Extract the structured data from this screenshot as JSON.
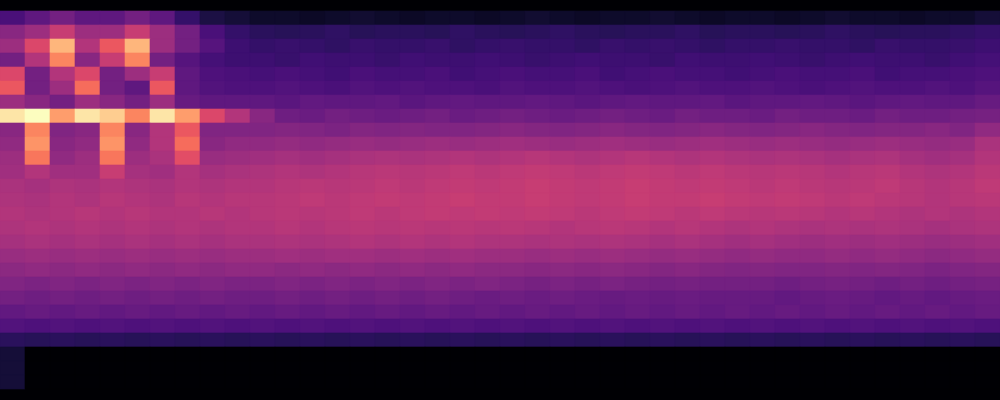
{
  "chart_data": {
    "type": "heatmap",
    "color": "magma",
    "tick_labels": false,
    "cells": [
      [
        0.25,
        0.3,
        0.35,
        0.3,
        0.3,
        0.35,
        0.3,
        0.2,
        0.14,
        0.12,
        0.1,
        0.1,
        0.09,
        0.1,
        0.11,
        0.1,
        0.09,
        0.1,
        0.1,
        0.09,
        0.1,
        0.11,
        0.1,
        0.09,
        0.1,
        0.1,
        0.11,
        0.1,
        0.09,
        0.1,
        0.1,
        0.09,
        0.1,
        0.11,
        0.1,
        0.1,
        0.09,
        0.1,
        0.1,
        0.12
      ],
      [
        0.4,
        0.45,
        0.55,
        0.45,
        0.45,
        0.55,
        0.45,
        0.35,
        0.25,
        0.2,
        0.18,
        0.17,
        0.18,
        0.19,
        0.17,
        0.18,
        0.18,
        0.17,
        0.19,
        0.18,
        0.17,
        0.18,
        0.19,
        0.18,
        0.17,
        0.18,
        0.18,
        0.19,
        0.17,
        0.18,
        0.18,
        0.17,
        0.18,
        0.19,
        0.18,
        0.17,
        0.18,
        0.18,
        0.19,
        0.2
      ],
      [
        0.45,
        0.6,
        0.85,
        0.5,
        0.65,
        0.85,
        0.45,
        0.35,
        0.28,
        0.22,
        0.2,
        0.21,
        0.2,
        0.19,
        0.21,
        0.2,
        0.2,
        0.21,
        0.19,
        0.2,
        0.21,
        0.2,
        0.2,
        0.19,
        0.21,
        0.2,
        0.21,
        0.2,
        0.19,
        0.2,
        0.2,
        0.21,
        0.2,
        0.2,
        0.19,
        0.21,
        0.2,
        0.2,
        0.21,
        0.22
      ],
      [
        0.35,
        0.5,
        0.75,
        0.4,
        0.55,
        0.75,
        0.35,
        0.28,
        0.24,
        0.22,
        0.22,
        0.21,
        0.23,
        0.22,
        0.22,
        0.21,
        0.23,
        0.22,
        0.22,
        0.23,
        0.22,
        0.21,
        0.22,
        0.23,
        0.22,
        0.22,
        0.21,
        0.23,
        0.22,
        0.22,
        0.23,
        0.22,
        0.21,
        0.22,
        0.23,
        0.22,
        0.22,
        0.21,
        0.23,
        0.24
      ],
      [
        0.6,
        0.35,
        0.5,
        0.6,
        0.35,
        0.45,
        0.55,
        0.3,
        0.26,
        0.25,
        0.24,
        0.25,
        0.24,
        0.23,
        0.25,
        0.24,
        0.24,
        0.25,
        0.23,
        0.24,
        0.25,
        0.24,
        0.24,
        0.25,
        0.23,
        0.24,
        0.25,
        0.24,
        0.24,
        0.23,
        0.24,
        0.25,
        0.24,
        0.24,
        0.25,
        0.23,
        0.24,
        0.24,
        0.25,
        0.26
      ],
      [
        0.65,
        0.35,
        0.45,
        0.7,
        0.35,
        0.3,
        0.65,
        0.3,
        0.27,
        0.26,
        0.26,
        0.27,
        0.26,
        0.25,
        0.27,
        0.26,
        0.27,
        0.26,
        0.26,
        0.25,
        0.27,
        0.26,
        0.26,
        0.27,
        0.26,
        0.25,
        0.26,
        0.27,
        0.26,
        0.26,
        0.27,
        0.26,
        0.25,
        0.26,
        0.27,
        0.26,
        0.26,
        0.27,
        0.26,
        0.28
      ],
      [
        0.45,
        0.4,
        0.35,
        0.45,
        0.4,
        0.35,
        0.45,
        0.32,
        0.3,
        0.3,
        0.3,
        0.29,
        0.31,
        0.3,
        0.3,
        0.31,
        0.29,
        0.3,
        0.31,
        0.3,
        0.3,
        0.31,
        0.3,
        0.29,
        0.3,
        0.31,
        0.3,
        0.3,
        0.31,
        0.29,
        0.3,
        0.3,
        0.31,
        0.3,
        0.29,
        0.3,
        0.31,
        0.3,
        0.3,
        0.32
      ],
      [
        0.95,
        1.0,
        0.8,
        0.95,
        0.9,
        0.75,
        0.95,
        0.8,
        0.6,
        0.5,
        0.4,
        0.34,
        0.33,
        0.35,
        0.34,
        0.33,
        0.34,
        0.35,
        0.33,
        0.34,
        0.35,
        0.34,
        0.33,
        0.34,
        0.35,
        0.34,
        0.33,
        0.35,
        0.34,
        0.34,
        0.33,
        0.35,
        0.34,
        0.34,
        0.33,
        0.35,
        0.34,
        0.34,
        0.35,
        0.36
      ],
      [
        0.4,
        0.75,
        0.38,
        0.4,
        0.75,
        0.4,
        0.5,
        0.65,
        0.38,
        0.38,
        0.38,
        0.39,
        0.38,
        0.37,
        0.39,
        0.38,
        0.39,
        0.38,
        0.38,
        0.39,
        0.4,
        0.39,
        0.38,
        0.39,
        0.4,
        0.39,
        0.38,
        0.39,
        0.4,
        0.39,
        0.38,
        0.39,
        0.4,
        0.39,
        0.38,
        0.39,
        0.39,
        0.4,
        0.38,
        0.42
      ],
      [
        0.42,
        0.78,
        0.4,
        0.42,
        0.78,
        0.42,
        0.5,
        0.7,
        0.4,
        0.42,
        0.42,
        0.43,
        0.42,
        0.43,
        0.44,
        0.43,
        0.44,
        0.45,
        0.44,
        0.45,
        0.46,
        0.45,
        0.44,
        0.45,
        0.46,
        0.45,
        0.44,
        0.45,
        0.46,
        0.45,
        0.44,
        0.45,
        0.44,
        0.43,
        0.44,
        0.45,
        0.44,
        0.43,
        0.44,
        0.48
      ],
      [
        0.45,
        0.72,
        0.42,
        0.45,
        0.72,
        0.45,
        0.48,
        0.62,
        0.44,
        0.45,
        0.46,
        0.47,
        0.46,
        0.47,
        0.48,
        0.49,
        0.48,
        0.49,
        0.5,
        0.49,
        0.5,
        0.51,
        0.5,
        0.49,
        0.5,
        0.51,
        0.5,
        0.49,
        0.5,
        0.49,
        0.48,
        0.49,
        0.48,
        0.47,
        0.48,
        0.49,
        0.47,
        0.46,
        0.47,
        0.5
      ],
      [
        0.46,
        0.5,
        0.46,
        0.46,
        0.55,
        0.47,
        0.46,
        0.5,
        0.47,
        0.48,
        0.49,
        0.5,
        0.49,
        0.5,
        0.51,
        0.52,
        0.51,
        0.52,
        0.53,
        0.52,
        0.53,
        0.54,
        0.53,
        0.52,
        0.53,
        0.54,
        0.53,
        0.52,
        0.53,
        0.52,
        0.51,
        0.52,
        0.51,
        0.5,
        0.51,
        0.52,
        0.5,
        0.49,
        0.5,
        0.52
      ],
      [
        0.48,
        0.47,
        0.49,
        0.48,
        0.5,
        0.49,
        0.48,
        0.5,
        0.49,
        0.5,
        0.5,
        0.51,
        0.52,
        0.51,
        0.52,
        0.53,
        0.52,
        0.53,
        0.54,
        0.53,
        0.54,
        0.55,
        0.54,
        0.53,
        0.54,
        0.55,
        0.54,
        0.53,
        0.54,
        0.53,
        0.52,
        0.53,
        0.52,
        0.51,
        0.52,
        0.53,
        0.51,
        0.5,
        0.51,
        0.53
      ],
      [
        0.49,
        0.48,
        0.5,
        0.49,
        0.51,
        0.5,
        0.49,
        0.51,
        0.5,
        0.51,
        0.51,
        0.52,
        0.53,
        0.52,
        0.53,
        0.54,
        0.53,
        0.54,
        0.55,
        0.54,
        0.54,
        0.55,
        0.54,
        0.53,
        0.54,
        0.55,
        0.54,
        0.54,
        0.55,
        0.54,
        0.53,
        0.54,
        0.53,
        0.52,
        0.53,
        0.52,
        0.51,
        0.5,
        0.51,
        0.52
      ],
      [
        0.5,
        0.49,
        0.5,
        0.51,
        0.5,
        0.51,
        0.5,
        0.5,
        0.51,
        0.5,
        0.51,
        0.52,
        0.51,
        0.52,
        0.53,
        0.52,
        0.53,
        0.54,
        0.53,
        0.54,
        0.53,
        0.54,
        0.53,
        0.52,
        0.53,
        0.54,
        0.53,
        0.52,
        0.53,
        0.52,
        0.51,
        0.52,
        0.51,
        0.5,
        0.51,
        0.5,
        0.49,
        0.5,
        0.49,
        0.5
      ],
      [
        0.49,
        0.5,
        0.49,
        0.5,
        0.49,
        0.5,
        0.49,
        0.5,
        0.49,
        0.5,
        0.5,
        0.51,
        0.5,
        0.51,
        0.52,
        0.51,
        0.52,
        0.51,
        0.52,
        0.51,
        0.52,
        0.51,
        0.5,
        0.51,
        0.52,
        0.51,
        0.5,
        0.51,
        0.5,
        0.49,
        0.5,
        0.49,
        0.48,
        0.49,
        0.48,
        0.49,
        0.48,
        0.47,
        0.48,
        0.49
      ],
      [
        0.47,
        0.48,
        0.47,
        0.48,
        0.47,
        0.48,
        0.47,
        0.48,
        0.47,
        0.48,
        0.48,
        0.49,
        0.48,
        0.49,
        0.5,
        0.49,
        0.5,
        0.49,
        0.5,
        0.49,
        0.49,
        0.48,
        0.49,
        0.48,
        0.49,
        0.48,
        0.47,
        0.48,
        0.47,
        0.46,
        0.47,
        0.46,
        0.45,
        0.46,
        0.45,
        0.46,
        0.45,
        0.44,
        0.45,
        0.46
      ],
      [
        0.44,
        0.45,
        0.44,
        0.45,
        0.44,
        0.45,
        0.44,
        0.45,
        0.44,
        0.45,
        0.45,
        0.46,
        0.45,
        0.46,
        0.46,
        0.45,
        0.46,
        0.45,
        0.46,
        0.45,
        0.45,
        0.44,
        0.45,
        0.44,
        0.45,
        0.44,
        0.43,
        0.44,
        0.43,
        0.42,
        0.43,
        0.42,
        0.42,
        0.43,
        0.42,
        0.43,
        0.42,
        0.41,
        0.42,
        0.43
      ],
      [
        0.41,
        0.42,
        0.41,
        0.42,
        0.41,
        0.42,
        0.41,
        0.42,
        0.41,
        0.42,
        0.42,
        0.41,
        0.42,
        0.41,
        0.42,
        0.41,
        0.42,
        0.41,
        0.42,
        0.41,
        0.41,
        0.4,
        0.41,
        0.4,
        0.41,
        0.4,
        0.39,
        0.4,
        0.39,
        0.38,
        0.39,
        0.38,
        0.38,
        0.39,
        0.38,
        0.39,
        0.38,
        0.37,
        0.38,
        0.39
      ],
      [
        0.38,
        0.37,
        0.38,
        0.37,
        0.38,
        0.37,
        0.38,
        0.37,
        0.38,
        0.37,
        0.37,
        0.38,
        0.37,
        0.38,
        0.37,
        0.38,
        0.37,
        0.38,
        0.37,
        0.38,
        0.37,
        0.36,
        0.37,
        0.36,
        0.37,
        0.36,
        0.35,
        0.36,
        0.35,
        0.35,
        0.35,
        0.34,
        0.35,
        0.36,
        0.35,
        0.34,
        0.35,
        0.34,
        0.35,
        0.36
      ],
      [
        0.35,
        0.34,
        0.35,
        0.34,
        0.35,
        0.34,
        0.35,
        0.34,
        0.35,
        0.34,
        0.34,
        0.35,
        0.34,
        0.35,
        0.34,
        0.35,
        0.34,
        0.35,
        0.34,
        0.33,
        0.34,
        0.33,
        0.34,
        0.33,
        0.32,
        0.33,
        0.32,
        0.33,
        0.32,
        0.32,
        0.32,
        0.31,
        0.32,
        0.33,
        0.32,
        0.31,
        0.32,
        0.31,
        0.32,
        0.33
      ],
      [
        0.31,
        0.32,
        0.31,
        0.32,
        0.31,
        0.32,
        0.31,
        0.32,
        0.31,
        0.32,
        0.31,
        0.32,
        0.31,
        0.32,
        0.31,
        0.32,
        0.31,
        0.32,
        0.31,
        0.32,
        0.31,
        0.32,
        0.31,
        0.32,
        0.31,
        0.32,
        0.31,
        0.32,
        0.31,
        0.32,
        0.31,
        0.32,
        0.31,
        0.32,
        0.31,
        0.32,
        0.31,
        0.32,
        0.31,
        0.32
      ],
      [
        0.27,
        0.26,
        0.27,
        0.26,
        0.27,
        0.26,
        0.27,
        0.26,
        0.27,
        0.26,
        0.27,
        0.26,
        0.27,
        0.26,
        0.27,
        0.26,
        0.27,
        0.26,
        0.27,
        0.26,
        0.27,
        0.26,
        0.27,
        0.26,
        0.27,
        0.26,
        0.27,
        0.26,
        0.27,
        0.26,
        0.27,
        0.26,
        0.27,
        0.26,
        0.27,
        0.26,
        0.27,
        0.26,
        0.27,
        0.26
      ],
      [
        0.18,
        0.17,
        0.18,
        0.17,
        0.18,
        0.17,
        0.18,
        0.17,
        0.18,
        0.17,
        0.18,
        0.17,
        0.18,
        0.17,
        0.18,
        0.17,
        0.18,
        0.17,
        0.18,
        0.17,
        0.18,
        0.17,
        0.18,
        0.17,
        0.18,
        0.17,
        0.18,
        0.17,
        0.18,
        0.17,
        0.18,
        0.17,
        0.18,
        0.17,
        0.18,
        0.17,
        0.18,
        0.17,
        0.18,
        0.17
      ],
      [
        0.12,
        0.02,
        0.02,
        0.02,
        0.02,
        0.02,
        0.02,
        0.02,
        0.02,
        0.02,
        0.02,
        0.02,
        0.02,
        0.02,
        0.02,
        0.02,
        0.02,
        0.02,
        0.02,
        0.02,
        0.02,
        0.02,
        0.02,
        0.02,
        0.02,
        0.02,
        0.02,
        0.02,
        0.02,
        0.02,
        0.02,
        0.02,
        0.02,
        0.02,
        0.02,
        0.02,
        0.02,
        0.02,
        0.02,
        0.02
      ],
      [
        0.12,
        0.02,
        0.02,
        0.02,
        0.02,
        0.02,
        0.02,
        0.02,
        0.02,
        0.02,
        0.02,
        0.02,
        0.02,
        0.02,
        0.02,
        0.02,
        0.02,
        0.02,
        0.02,
        0.02,
        0.02,
        0.02,
        0.02,
        0.02,
        0.02,
        0.02,
        0.02,
        0.02,
        0.02,
        0.02,
        0.02,
        0.02,
        0.02,
        0.02,
        0.02,
        0.02,
        0.02,
        0.02,
        0.02,
        0.02
      ],
      [
        0.12,
        0.02,
        0.02,
        0.02,
        0.02,
        0.02,
        0.02,
        0.02,
        0.02,
        0.02,
        0.02,
        0.02,
        0.02,
        0.02,
        0.02,
        0.02,
        0.02,
        0.02,
        0.02,
        0.02,
        0.02,
        0.02,
        0.02,
        0.02,
        0.02,
        0.02,
        0.02,
        0.02,
        0.02,
        0.02,
        0.02,
        0.02,
        0.02,
        0.02,
        0.02,
        0.02,
        0.02,
        0.02,
        0.02,
        0.02
      ]
    ]
  }
}
